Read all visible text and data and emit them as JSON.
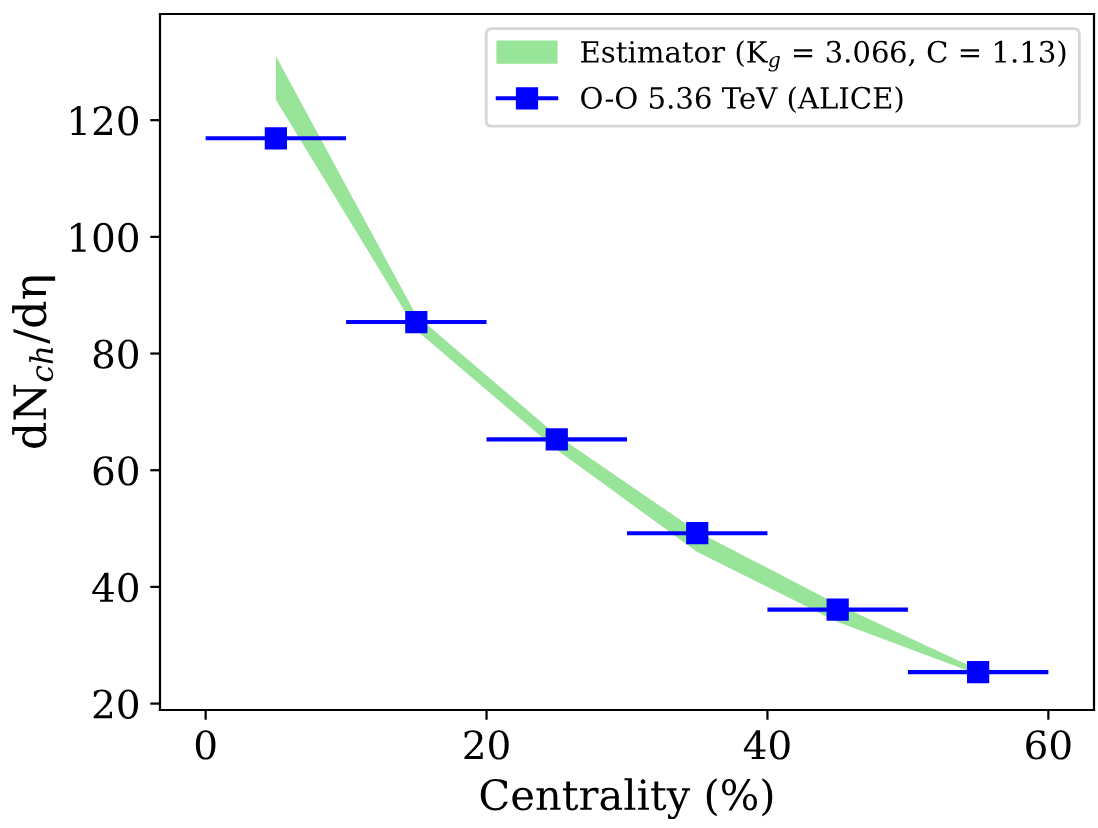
{
  "chart_data": {
    "type": "scatter",
    "xlabel": "Centrality (%)",
    "ylabel": "dN$_{ch}$/dη",
    "xlim": [
      -3.25,
      63.25
    ],
    "xticks": [
      0,
      20,
      40,
      60
    ],
    "ylim": [
      18.9,
      138.2
    ],
    "yticks": [
      20,
      40,
      60,
      80,
      100,
      120
    ],
    "grid": false,
    "legend": "top right",
    "series": [
      {
        "type": "area",
        "name": "Estimator (K$_{g}$ = 3.066, C = 1.13)",
        "color": "#98e498",
        "x": [
          5,
          15,
          25,
          35,
          45,
          55
        ],
        "values": [
          null,
          null,
          null,
          null,
          null,
          null
        ],
        "lower": [
          123.5,
          84,
          63.5,
          46,
          34,
          25
        ],
        "upper": [
          131,
          86.5,
          66,
          49.5,
          37,
          25.8
        ]
      },
      {
        "name": "O-O 5.36 TeV (ALICE)",
        "color": "#0000ff",
        "marker": "square",
        "x": [
          5,
          15,
          25,
          35,
          45,
          55
        ],
        "values": [
          116.9,
          85.4,
          65.3,
          49.2,
          36.1,
          25.4
        ],
        "xerrors": [
          5,
          5,
          5,
          5,
          5,
          5
        ]
      }
    ]
  }
}
